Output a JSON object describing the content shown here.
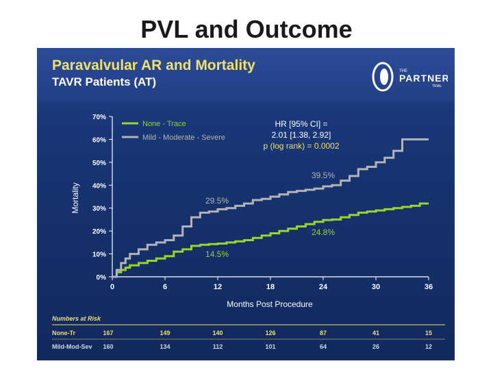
{
  "slide": {
    "title": "PVL and Outcome"
  },
  "logo": {
    "the": "THE",
    "name": "PARTNER",
    "trial": "TRIAL"
  },
  "chart_data": {
    "type": "line",
    "title": "Paravalvular AR and Mortality",
    "subtitle": "TAVR Patients (AT)",
    "xlabel": "Months Post Procedure",
    "ylabel": "Mortality",
    "xlim": [
      0,
      36
    ],
    "ylim": [
      0,
      70
    ],
    "xticks": [
      "0",
      "6",
      "12",
      "18",
      "24",
      "30",
      "36"
    ],
    "yticks": [
      "0%",
      "10%",
      "20%",
      "30%",
      "40%",
      "50%",
      "60%",
      "70%"
    ],
    "legend_position": "top-left",
    "series": [
      {
        "name": "None - Trace",
        "color": "#9bd52a",
        "x": [
          0,
          0.5,
          1,
          1.5,
          2,
          3,
          4,
          5,
          6,
          7,
          8,
          9,
          10,
          11,
          12,
          13,
          14,
          15,
          16,
          17,
          18,
          19,
          20,
          21,
          22,
          23,
          24,
          25,
          26,
          27,
          28,
          29,
          30,
          31,
          32,
          33,
          34,
          35,
          36
        ],
        "y": [
          0,
          2,
          3,
          4,
          5,
          6,
          7,
          8,
          9,
          11,
          12,
          13.5,
          14,
          14.3,
          14.5,
          15,
          15.5,
          16,
          17,
          18,
          19,
          20,
          21,
          22,
          23,
          24,
          24.8,
          25,
          26,
          27,
          28,
          28.5,
          29,
          29.5,
          30,
          30.5,
          31,
          32,
          32
        ]
      },
      {
        "name": "Mild - Moderate - Severe",
        "color": "#b4b4b4",
        "x": [
          0,
          0.5,
          1,
          1.5,
          2,
          3,
          4,
          5,
          6,
          7,
          8,
          9,
          10,
          11,
          12,
          13,
          14,
          15,
          16,
          17,
          18,
          19,
          20,
          21,
          22,
          23,
          24,
          25,
          26,
          27,
          28,
          29,
          30,
          31,
          32,
          33,
          34,
          35,
          36
        ],
        "y": [
          0,
          3,
          6,
          8,
          10,
          12,
          14,
          15,
          16,
          18,
          22,
          26,
          28,
          28.5,
          29.5,
          30,
          31,
          32,
          33.5,
          34,
          35,
          36,
          37,
          37.5,
          38,
          38.5,
          39.5,
          40,
          42,
          44,
          47,
          48,
          50,
          52,
          55,
          60,
          60,
          60,
          60
        ]
      }
    ],
    "annotations": {
      "hr_line1": "HR [95% CI] =",
      "hr_line2": "2.01 [1.38, 2.92]",
      "p_value": "p (log rank) = 0.0002",
      "gray_12": "29.5%",
      "gray_24": "39.5%",
      "green_12": "14.5%",
      "green_24": "24.8%"
    },
    "numbers_at_risk": {
      "heading": "Numbers at Risk",
      "rows": [
        {
          "label": "None-Tr",
          "values": [
            "167",
            "149",
            "140",
            "126",
            "87",
            "41",
            "15"
          ]
        },
        {
          "label": "Mild-Mod-Sev",
          "values": [
            "160",
            "134",
            "112",
            "101",
            "64",
            "26",
            "12"
          ]
        }
      ]
    }
  }
}
